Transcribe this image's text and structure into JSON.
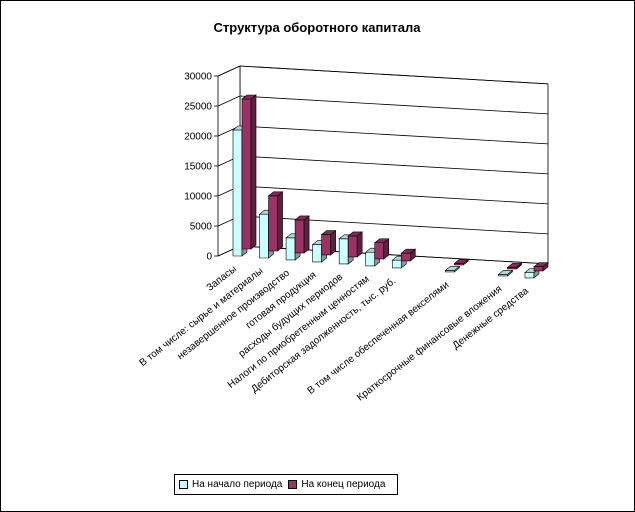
{
  "chart_data": {
    "type": "bar",
    "title": "Структура оборотного капитала",
    "xlabel": "",
    "ylabel": "",
    "ylim": [
      0,
      30000
    ],
    "yticks": [
      0,
      5000,
      10000,
      15000,
      20000,
      25000,
      30000
    ],
    "grid": true,
    "legend_position": "bottom",
    "categories": [
      "Запасы",
      "В том числе: сырье и материалы",
      "незавершенное производство",
      "готовая продукция",
      "расходы будущих периодов",
      "Налоги по приобретенным ценностям",
      "Дебиторская задолженность, тыс. руб.",
      "",
      "В том числе обеспеченная векселями",
      "",
      "Краткосрочные финансовые вложения",
      "Денежные средства"
    ],
    "series": [
      {
        "name": "На начало периода",
        "color": "#ccffff",
        "values": [
          21000,
          7300,
          3700,
          2900,
          4200,
          2300,
          1300,
          0,
          150,
          0,
          150,
          900
        ]
      },
      {
        "name": "На конец периода",
        "color": "#993366",
        "values": [
          25000,
          9200,
          5500,
          3400,
          3500,
          2700,
          1300,
          0,
          250,
          0,
          200,
          700
        ]
      }
    ]
  }
}
